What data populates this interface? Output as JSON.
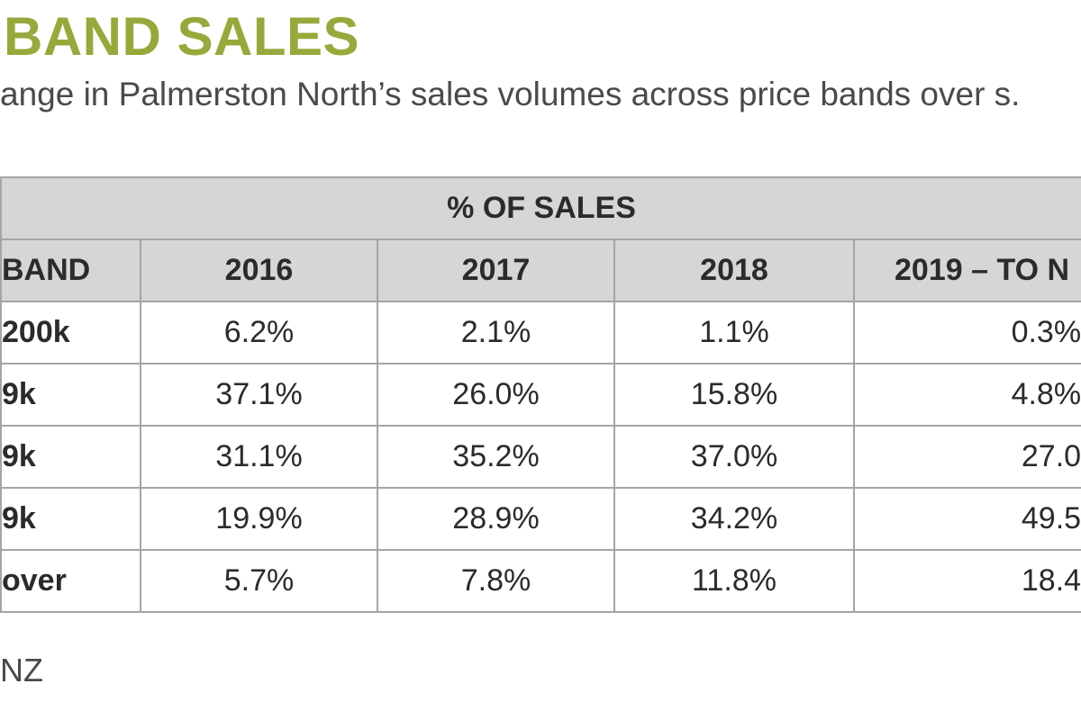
{
  "title": "BAND SALES",
  "subtitle": "ange in Palmerston North’s sales volumes across price bands over s.",
  "source": "NZ",
  "chart_data": {
    "type": "table",
    "title": "BAND SALES",
    "group_header": "% OF SALES",
    "columns": [
      "BAND",
      "2016",
      "2017",
      "2018",
      "2019 – TO N"
    ],
    "rows": [
      {
        "band": "200k",
        "values": [
          "6.2%",
          "2.1%",
          "1.1%",
          "0.3%"
        ]
      },
      {
        "band": "9k",
        "values": [
          "37.1%",
          "26.0%",
          "15.8%",
          "4.8%"
        ]
      },
      {
        "band": "9k",
        "values": [
          "31.1%",
          "35.2%",
          "37.0%",
          "27.0"
        ]
      },
      {
        "band": "9k",
        "values": [
          "19.9%",
          "28.9%",
          "34.2%",
          "49.5"
        ]
      },
      {
        "band": "over",
        "values": [
          "5.7%",
          "7.8%",
          "11.8%",
          "18.4"
        ]
      }
    ]
  },
  "colors": {
    "title": "#99a83b",
    "header_bg": "#d6d6d6",
    "border": "#a5a5a5",
    "text": "#2b2b2b"
  }
}
